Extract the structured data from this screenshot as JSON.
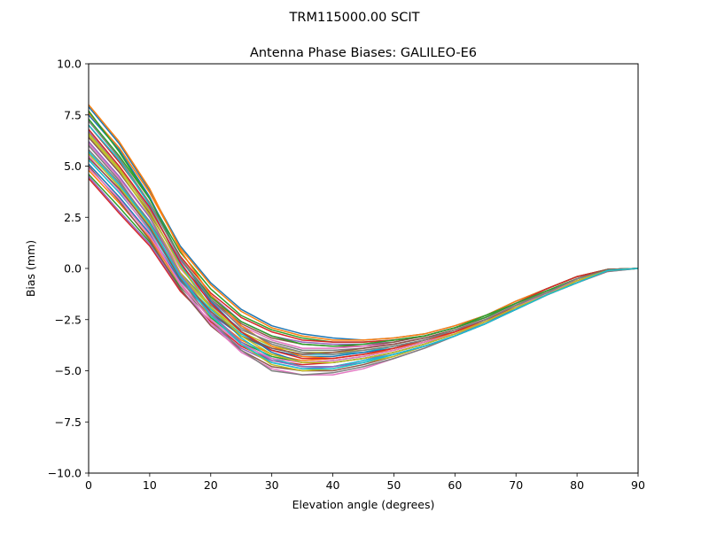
{
  "chart_data": {
    "type": "line",
    "suptitle": "TRM115000.00    SCIT",
    "title": "Antenna Phase Biases: GALILEO-E6",
    "xlabel": "Elevation angle (degrees)",
    "ylabel": "Bias (mm)",
    "xlim": [
      0,
      90
    ],
    "ylim": [
      -10,
      10
    ],
    "xticks": [
      0,
      10,
      20,
      30,
      40,
      50,
      60,
      70,
      80,
      90
    ],
    "xtick_labels": [
      "0",
      "10",
      "20",
      "30",
      "40",
      "50",
      "60",
      "70",
      "80",
      "90"
    ],
    "yticks": [
      -10,
      -7.5,
      -5,
      -2.5,
      0,
      2.5,
      5,
      7.5,
      10
    ],
    "ytick_labels": [
      "−10.0",
      "−7.5",
      "−5.0",
      "−2.5",
      "0.0",
      "2.5",
      "5.0",
      "7.5",
      "10.0"
    ],
    "grid": false,
    "legend": "none",
    "x": [
      0,
      5,
      10,
      15,
      20,
      25,
      30,
      35,
      40,
      45,
      50,
      55,
      60,
      65,
      70,
      75,
      80,
      85,
      90
    ],
    "series_count_note": "",
    "colors": [
      "#1f77b4",
      "#ff7f0e",
      "#2ca02c",
      "#d62728",
      "#9467bd",
      "#8c564b",
      "#e377c2",
      "#7f7f7f",
      "#bcbd22",
      "#17becf"
    ],
    "series": [
      {
        "values": [
          7.9,
          6.1,
          3.8,
          1.1,
          -0.7,
          -2.0,
          -2.8,
          -3.2,
          -3.4,
          -3.5,
          -3.4,
          -3.2,
          -2.8,
          -2.3,
          -1.6,
          -1.0,
          -0.4,
          -0.05,
          0.0
        ]
      },
      {
        "values": [
          7.6,
          5.9,
          3.7,
          1.0,
          -0.8,
          -2.1,
          -2.9,
          -3.3,
          -3.5,
          -3.5,
          -3.4,
          -3.2,
          -2.8,
          -2.3,
          -1.6,
          -1.0,
          -0.4,
          -0.05,
          0.0
        ]
      },
      {
        "values": [
          7.3,
          5.5,
          3.4,
          0.8,
          -1.0,
          -2.3,
          -3.0,
          -3.4,
          -3.6,
          -3.6,
          -3.5,
          -3.3,
          -2.9,
          -2.3,
          -1.7,
          -1.0,
          -0.4,
          -0.05,
          0.0
        ]
      },
      {
        "values": [
          7.0,
          5.2,
          3.2,
          0.6,
          -1.2,
          -2.4,
          -3.1,
          -3.5,
          -3.6,
          -3.6,
          -3.5,
          -3.3,
          -2.9,
          -2.4,
          -1.7,
          -1.0,
          -0.4,
          -0.05,
          0.0
        ]
      },
      {
        "values": [
          6.7,
          4.9,
          2.9,
          0.4,
          -1.3,
          -2.6,
          -3.3,
          -3.6,
          -3.7,
          -3.7,
          -3.6,
          -3.3,
          -2.9,
          -2.4,
          -1.7,
          -1.1,
          -0.5,
          -0.05,
          0.0
        ]
      },
      {
        "values": [
          6.4,
          4.7,
          2.7,
          0.2,
          -1.5,
          -2.7,
          -3.4,
          -3.7,
          -3.8,
          -3.8,
          -3.6,
          -3.3,
          -2.9,
          -2.4,
          -1.8,
          -1.1,
          -0.5,
          -0.05,
          0.0
        ]
      },
      {
        "values": [
          6.1,
          4.4,
          2.5,
          0.0,
          -1.6,
          -2.8,
          -3.5,
          -3.9,
          -3.9,
          -3.8,
          -3.7,
          -3.4,
          -3.0,
          -2.4,
          -1.8,
          -1.1,
          -0.5,
          -0.05,
          0.0
        ]
      },
      {
        "values": [
          5.8,
          4.2,
          2.3,
          -0.2,
          -1.8,
          -3.0,
          -3.6,
          -4.0,
          -4.0,
          -3.9,
          -3.7,
          -3.4,
          -3.0,
          -2.5,
          -1.8,
          -1.1,
          -0.5,
          -0.05,
          0.0
        ]
      },
      {
        "values": [
          5.6,
          4.0,
          2.1,
          -0.3,
          -1.9,
          -3.1,
          -3.8,
          -4.1,
          -4.1,
          -4.0,
          -3.8,
          -3.5,
          -3.0,
          -2.5,
          -1.8,
          -1.2,
          -0.5,
          -0.1,
          0.0
        ]
      },
      {
        "values": [
          5.3,
          3.7,
          1.9,
          -0.5,
          -2.0,
          -3.2,
          -3.9,
          -4.2,
          -4.2,
          -4.1,
          -3.8,
          -3.5,
          -3.1,
          -2.5,
          -1.9,
          -1.2,
          -0.5,
          -0.1,
          0.0
        ]
      },
      {
        "values": [
          5.1,
          3.5,
          1.7,
          -0.6,
          -2.2,
          -3.3,
          -4.0,
          -4.3,
          -4.3,
          -4.1,
          -3.9,
          -3.5,
          -3.1,
          -2.5,
          -1.9,
          -1.2,
          -0.6,
          -0.1,
          0.0
        ]
      },
      {
        "values": [
          4.8,
          3.2,
          1.5,
          -0.8,
          -2.3,
          -3.5,
          -4.2,
          -4.5,
          -4.4,
          -4.2,
          -3.9,
          -3.6,
          -3.1,
          -2.6,
          -1.9,
          -1.2,
          -0.6,
          -0.1,
          0.0
        ]
      },
      {
        "values": [
          4.6,
          3.0,
          1.3,
          -0.9,
          -2.4,
          -3.6,
          -4.3,
          -4.6,
          -4.5,
          -4.3,
          -4.0,
          -3.6,
          -3.2,
          -2.6,
          -1.9,
          -1.3,
          -0.6,
          -0.1,
          0.0
        ]
      },
      {
        "values": [
          4.4,
          2.7,
          1.1,
          -1.1,
          -2.6,
          -3.8,
          -4.5,
          -4.7,
          -4.6,
          -4.4,
          -4.1,
          -3.7,
          -3.2,
          -2.6,
          -2.0,
          -1.3,
          -0.6,
          -0.1,
          0.0
        ]
      },
      {
        "values": [
          4.5,
          2.8,
          1.2,
          -1.0,
          -2.7,
          -3.9,
          -4.6,
          -4.9,
          -4.8,
          -4.5,
          -4.1,
          -3.7,
          -3.2,
          -2.7,
          -2.0,
          -1.3,
          -0.6,
          -0.1,
          0.0
        ]
      },
      {
        "values": [
          5.0,
          3.3,
          1.4,
          -1.0,
          -2.8,
          -4.0,
          -4.8,
          -5.0,
          -5.0,
          -4.7,
          -4.3,
          -3.8,
          -3.3,
          -2.7,
          -2.0,
          -1.3,
          -0.7,
          -0.1,
          0.0
        ]
      },
      {
        "values": [
          5.5,
          3.8,
          1.8,
          -0.8,
          -2.7,
          -4.1,
          -4.9,
          -5.2,
          -5.2,
          -4.9,
          -4.4,
          -3.9,
          -3.3,
          -2.7,
          -2.0,
          -1.3,
          -0.7,
          -0.15,
          0.0
        ]
      },
      {
        "values": [
          6.0,
          4.3,
          2.2,
          -0.5,
          -2.5,
          -4.0,
          -5.0,
          -5.2,
          -5.1,
          -4.8,
          -4.4,
          -3.9,
          -3.3,
          -2.7,
          -2.0,
          -1.3,
          -0.7,
          -0.15,
          0.0
        ]
      },
      {
        "values": [
          6.5,
          4.8,
          2.6,
          -0.2,
          -2.2,
          -3.7,
          -4.7,
          -5.0,
          -4.9,
          -4.6,
          -4.3,
          -3.8,
          -3.3,
          -2.7,
          -2.0,
          -1.3,
          -0.7,
          -0.1,
          0.0
        ]
      },
      {
        "values": [
          7.0,
          5.3,
          3.1,
          0.2,
          -1.9,
          -3.4,
          -4.4,
          -4.8,
          -4.8,
          -4.5,
          -4.2,
          -3.8,
          -3.3,
          -2.7,
          -2.0,
          -1.3,
          -0.6,
          -0.1,
          0.0
        ]
      },
      {
        "values": [
          7.5,
          5.8,
          3.5,
          0.5,
          -1.6,
          -3.1,
          -4.1,
          -4.6,
          -4.6,
          -4.4,
          -4.1,
          -3.7,
          -3.2,
          -2.6,
          -2.0,
          -1.3,
          -0.6,
          -0.1,
          0.0
        ]
      },
      {
        "values": [
          8.0,
          6.2,
          3.9,
          0.9,
          -1.3,
          -2.8,
          -3.8,
          -4.3,
          -4.4,
          -4.2,
          -4.0,
          -3.6,
          -3.2,
          -2.6,
          -1.9,
          -1.2,
          -0.6,
          -0.1,
          0.0
        ]
      },
      {
        "values": [
          7.7,
          5.7,
          3.4,
          0.5,
          -1.4,
          -2.6,
          -3.3,
          -3.7,
          -3.8,
          -3.7,
          -3.5,
          -3.3,
          -2.9,
          -2.4,
          -1.7,
          -1.1,
          -0.5,
          -0.05,
          0.0
        ]
      },
      {
        "values": [
          6.8,
          5.0,
          3.0,
          0.3,
          -1.7,
          -3.1,
          -4.0,
          -4.4,
          -4.4,
          -4.2,
          -3.9,
          -3.5,
          -3.1,
          -2.5,
          -1.9,
          -1.2,
          -0.6,
          -0.1,
          0.0
        ]
      },
      {
        "values": [
          6.2,
          4.5,
          2.5,
          -0.3,
          -2.2,
          -3.6,
          -4.5,
          -4.8,
          -4.8,
          -4.6,
          -4.2,
          -3.8,
          -3.3,
          -2.7,
          -2.0,
          -1.3,
          -0.7,
          -0.1,
          0.0
        ]
      },
      {
        "values": [
          5.4,
          3.9,
          2.0,
          -0.5,
          -2.1,
          -3.3,
          -3.9,
          -4.2,
          -4.1,
          -3.9,
          -3.7,
          -3.4,
          -3.0,
          -2.5,
          -1.8,
          -1.2,
          -0.5,
          -0.05,
          0.0
        ]
      },
      {
        "values": [
          4.9,
          3.4,
          1.6,
          -0.7,
          -2.5,
          -3.7,
          -4.4,
          -4.6,
          -4.5,
          -4.3,
          -4.0,
          -3.6,
          -3.2,
          -2.6,
          -1.9,
          -1.2,
          -0.6,
          -0.1,
          0.0
        ]
      },
      {
        "values": [
          7.2,
          5.4,
          3.2,
          0.5,
          -1.5,
          -2.9,
          -3.7,
          -4.1,
          -4.2,
          -4.0,
          -3.8,
          -3.5,
          -3.0,
          -2.5,
          -1.8,
          -1.2,
          -0.5,
          -0.1,
          0.0
        ]
      },
      {
        "values": [
          6.6,
          4.9,
          2.8,
          0.1,
          -1.9,
          -3.3,
          -4.2,
          -4.6,
          -4.6,
          -4.4,
          -4.1,
          -3.7,
          -3.2,
          -2.6,
          -1.9,
          -1.3,
          -0.6,
          -0.1,
          0.0
        ]
      },
      {
        "values": [
          5.7,
          4.1,
          2.2,
          -0.4,
          -2.3,
          -3.7,
          -4.6,
          -4.9,
          -4.9,
          -4.6,
          -4.2,
          -3.8,
          -3.3,
          -2.7,
          -2.0,
          -1.3,
          -0.7,
          -0.1,
          0.0
        ]
      }
    ]
  }
}
